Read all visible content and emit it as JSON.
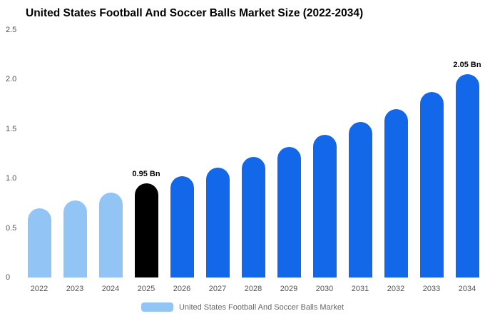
{
  "title": "United States Football And Soccer Balls Market Size (2022-2034)",
  "chart_data": {
    "type": "bar",
    "title": "United States Football And Soccer Balls Market Size (2022-2034)",
    "categories": [
      "2022",
      "2023",
      "2024",
      "2025",
      "2026",
      "2027",
      "2028",
      "2029",
      "2030",
      "2031",
      "2032",
      "2033",
      "2034"
    ],
    "values": [
      0.7,
      0.78,
      0.86,
      0.95,
      1.02,
      1.11,
      1.22,
      1.32,
      1.44,
      1.57,
      1.7,
      1.87,
      2.05
    ],
    "unit": "Bn",
    "bar_colors": [
      "#92C5F5",
      "#92C5F5",
      "#92C5F5",
      "#000000",
      "#1268E8",
      "#1268E8",
      "#1268E8",
      "#1268E8",
      "#1268E8",
      "#1268E8",
      "#1268E8",
      "#1268E8",
      "#1268E8"
    ],
    "xlabel": "",
    "ylabel": "",
    "ylim": [
      0,
      2.5
    ],
    "yticks": [
      0,
      0.5,
      1.0,
      1.5,
      2.0,
      2.5
    ],
    "ytick_labels": [
      "0",
      "0.5",
      "1.0",
      "1.5",
      "2.0",
      "2.5"
    ],
    "grid": false,
    "legend_position": "bottom",
    "annotations": [
      {
        "category": "2025",
        "text": "0.95 Bn"
      },
      {
        "category": "2034",
        "text": "2.05 Bn"
      }
    ]
  },
  "legend": {
    "label": "United States Football And Soccer Balls Market",
    "swatch_color": "#92C5F5"
  },
  "colors": {
    "light_blue": "#92C5F5",
    "blue": "#1268E8",
    "black": "#000000",
    "axis_text": "#555555",
    "legend_text": "#666666"
  }
}
